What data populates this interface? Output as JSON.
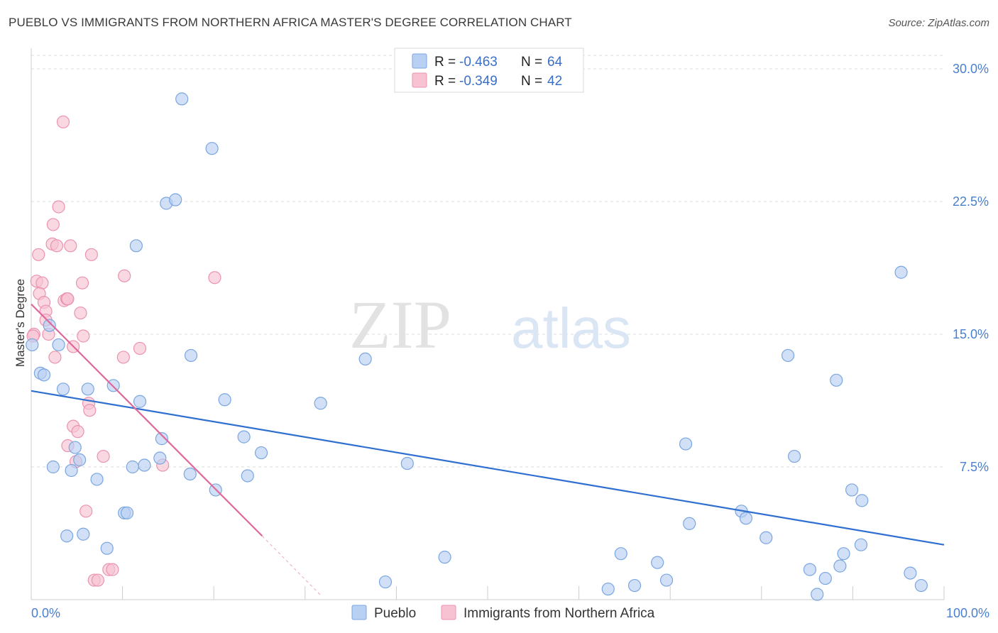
{
  "title": "PUEBLO VS IMMIGRANTS FROM NORTHERN AFRICA MASTER'S DEGREE CORRELATION CHART",
  "source": "Source: ZipAtlas.com",
  "colors": {
    "pueblo_fill": "#b8d0f2",
    "pueblo_stroke": "#7aa6e0",
    "pueblo_line": "#2f6fd0",
    "africa_fill": "#f7c3d3",
    "africa_stroke": "#ea93b0",
    "africa_line": "#e0679a",
    "tick": "#4a7fcf",
    "grid": "#dddddd"
  },
  "chart_data": {
    "type": "scatter",
    "title": "PUEBLO VS IMMIGRANTS FROM NORTHERN AFRICA MASTER'S DEGREE CORRELATION CHART",
    "xlabel": "",
    "ylabel": "Master's Degree",
    "xlim": [
      0,
      100
    ],
    "ylim": [
      0,
      30
    ],
    "x_tick_labels": [
      "0.0%",
      "100.0%"
    ],
    "y_ticks": [
      7.5,
      15.0,
      22.5,
      30.0
    ],
    "y_tick_labels": [
      "7.5%",
      "15.0%",
      "22.5%",
      "30.0%"
    ],
    "grid": "horizontal dashed",
    "legend_top": [
      {
        "r_label": "R = ",
        "r_value": "-0.463",
        "n_label": "N = ",
        "n_value": "64"
      },
      {
        "r_label": "R = ",
        "r_value": "-0.349",
        "n_label": "N = ",
        "n_value": "42"
      }
    ],
    "series": [
      {
        "name": "Pueblo",
        "trend": {
          "x0": 0,
          "y0": 11.8,
          "x1": 100,
          "y1": 3.1
        },
        "points": [
          [
            16.5,
            28.3
          ],
          [
            19.8,
            25.5
          ],
          [
            14.8,
            22.4
          ],
          [
            15.8,
            22.6
          ],
          [
            11.5,
            20.0
          ],
          [
            0.1,
            14.4
          ],
          [
            2.0,
            15.5
          ],
          [
            3.0,
            14.4
          ],
          [
            1.0,
            12.8
          ],
          [
            1.4,
            12.7
          ],
          [
            17.5,
            13.8
          ],
          [
            36.6,
            13.6
          ],
          [
            9.0,
            12.1
          ],
          [
            3.5,
            11.9
          ],
          [
            6.2,
            11.9
          ],
          [
            11.9,
            11.2
          ],
          [
            21.2,
            11.3
          ],
          [
            31.7,
            11.1
          ],
          [
            14.3,
            9.1
          ],
          [
            23.3,
            9.2
          ],
          [
            25.2,
            8.3
          ],
          [
            4.8,
            8.6
          ],
          [
            5.3,
            7.9
          ],
          [
            14.1,
            8.0
          ],
          [
            2.4,
            7.5
          ],
          [
            11.1,
            7.5
          ],
          [
            12.4,
            7.6
          ],
          [
            4.4,
            7.3
          ],
          [
            17.4,
            7.1
          ],
          [
            23.7,
            7.0
          ],
          [
            7.2,
            6.8
          ],
          [
            20.2,
            6.2
          ],
          [
            41.2,
            7.7
          ],
          [
            71.7,
            8.8
          ],
          [
            95.3,
            18.5
          ],
          [
            82.9,
            13.8
          ],
          [
            88.2,
            12.4
          ],
          [
            83.6,
            8.1
          ],
          [
            89.9,
            6.2
          ],
          [
            91.0,
            5.6
          ],
          [
            10.2,
            4.9
          ],
          [
            10.5,
            4.9
          ],
          [
            77.8,
            5.0
          ],
          [
            78.3,
            4.6
          ],
          [
            72.1,
            4.3
          ],
          [
            3.9,
            3.6
          ],
          [
            5.7,
            3.7
          ],
          [
            8.3,
            2.9
          ],
          [
            80.5,
            3.5
          ],
          [
            45.3,
            2.4
          ],
          [
            64.6,
            2.6
          ],
          [
            68.6,
            2.1
          ],
          [
            89.0,
            2.6
          ],
          [
            90.9,
            3.1
          ],
          [
            85.3,
            1.7
          ],
          [
            88.6,
            1.9
          ],
          [
            38.8,
            1.0
          ],
          [
            63.2,
            0.6
          ],
          [
            66.1,
            0.8
          ],
          [
            69.6,
            1.1
          ],
          [
            87.0,
            1.2
          ],
          [
            96.3,
            1.5
          ],
          [
            97.5,
            0.8
          ],
          [
            86.1,
            0.3
          ]
        ]
      },
      {
        "name": "Immigrants from Northern Africa",
        "trend": {
          "x0": 0,
          "y0": 16.7,
          "x1": 25.3,
          "y1": 3.6,
          "dash_x1": 31.8,
          "dash_y1": 0.2
        },
        "points": [
          [
            3.5,
            27.0
          ],
          [
            3.0,
            22.2
          ],
          [
            2.4,
            21.2
          ],
          [
            2.3,
            20.1
          ],
          [
            2.8,
            20.0
          ],
          [
            4.3,
            20.0
          ],
          [
            0.8,
            19.5
          ],
          [
            6.6,
            19.5
          ],
          [
            10.2,
            18.3
          ],
          [
            20.1,
            18.2
          ],
          [
            0.6,
            18.0
          ],
          [
            1.2,
            17.9
          ],
          [
            5.6,
            17.9
          ],
          [
            0.9,
            17.3
          ],
          [
            1.4,
            16.8
          ],
          [
            3.6,
            16.9
          ],
          [
            3.9,
            17.0
          ],
          [
            4.0,
            17.0
          ],
          [
            1.6,
            16.3
          ],
          [
            1.6,
            15.8
          ],
          [
            5.4,
            16.2
          ],
          [
            0.3,
            15.0
          ],
          [
            1.9,
            15.0
          ],
          [
            5.7,
            14.9
          ],
          [
            4.6,
            14.3
          ],
          [
            11.9,
            14.2
          ],
          [
            2.6,
            13.7
          ],
          [
            10.1,
            13.7
          ],
          [
            6.3,
            11.1
          ],
          [
            6.4,
            10.7
          ],
          [
            4.6,
            9.8
          ],
          [
            5.1,
            9.5
          ],
          [
            4.0,
            8.7
          ],
          [
            4.9,
            7.8
          ],
          [
            7.9,
            8.1
          ],
          [
            14.4,
            7.6
          ],
          [
            6.0,
            5.0
          ],
          [
            8.5,
            1.7
          ],
          [
            8.9,
            1.7
          ],
          [
            6.9,
            1.1
          ],
          [
            7.3,
            1.1
          ],
          [
            0.2,
            14.9
          ]
        ]
      }
    ]
  }
}
